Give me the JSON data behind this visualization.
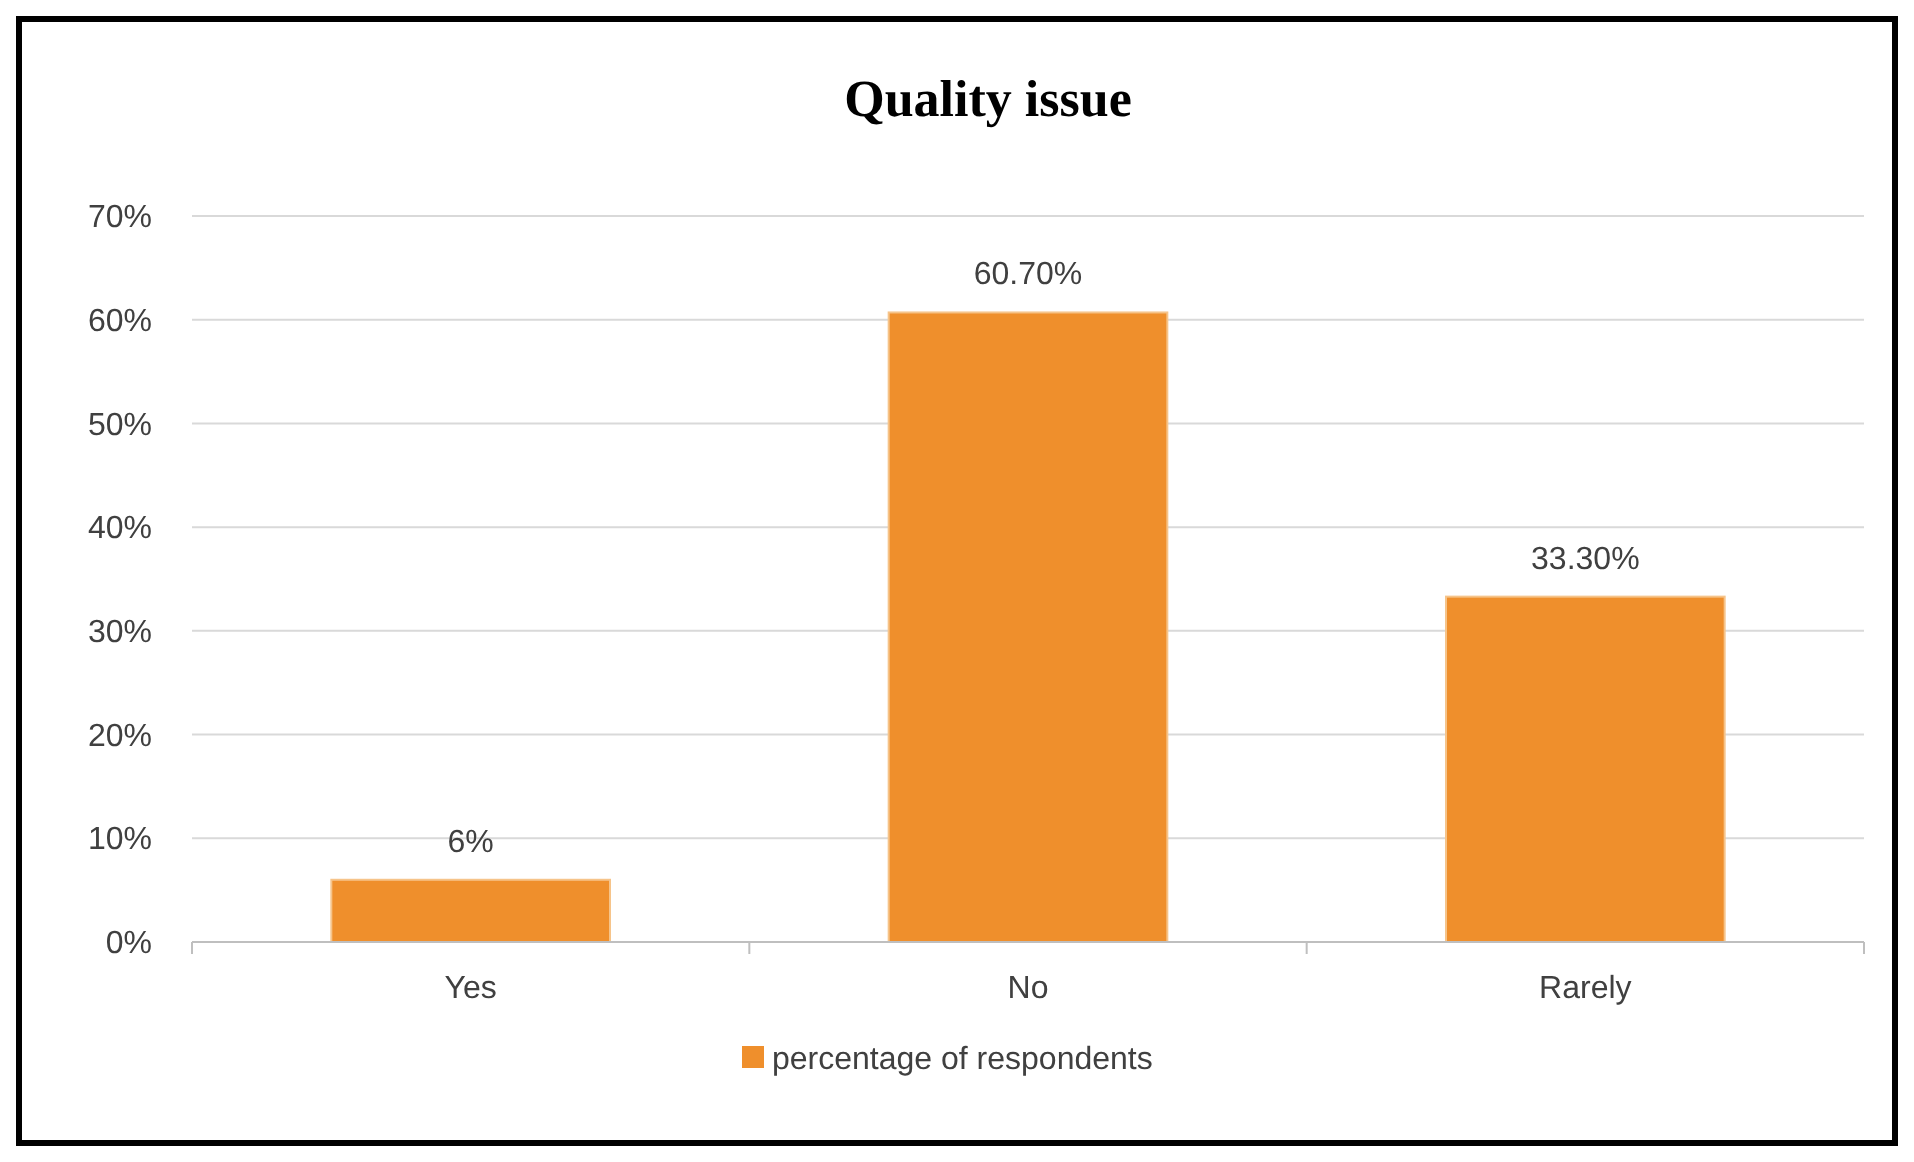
{
  "chart_data": {
    "type": "bar",
    "title": "Quality issue",
    "categories": [
      "Yes",
      "No",
      "Rarely"
    ],
    "series": [
      {
        "name": "percentage of respondents",
        "color": "#ef8f2c",
        "values": [
          6,
          60.7,
          33.3
        ],
        "value_labels": [
          "6%",
          "60.70%",
          "33.30%"
        ]
      }
    ],
    "ylim": [
      0,
      70
    ],
    "yticks": [
      {
        "value": 0,
        "label": "0%"
      },
      {
        "value": 10,
        "label": "10%"
      },
      {
        "value": 20,
        "label": "20%"
      },
      {
        "value": 30,
        "label": "30%"
      },
      {
        "value": 40,
        "label": "40%"
      },
      {
        "value": 50,
        "label": "50%"
      },
      {
        "value": 60,
        "label": "60%"
      },
      {
        "value": 70,
        "label": "70%"
      }
    ],
    "grid": "y",
    "legend": "bottom"
  }
}
